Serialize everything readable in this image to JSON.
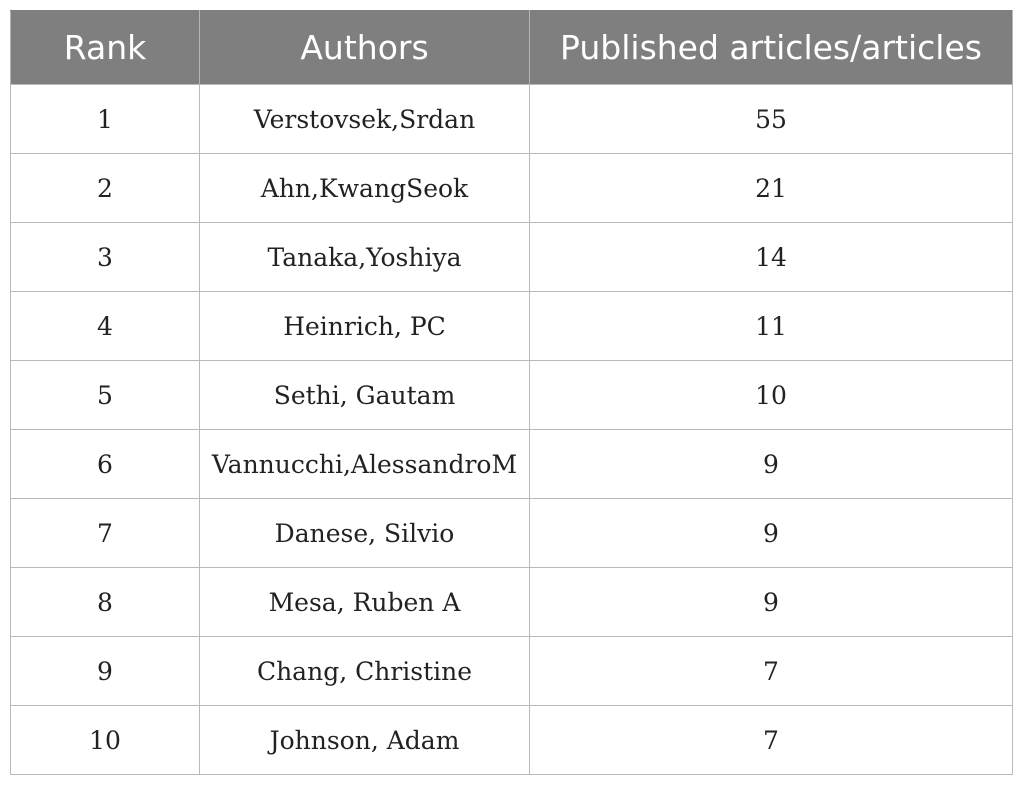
{
  "table": {
    "headers": [
      "Rank",
      "Authors",
      "Published articles/articles"
    ],
    "rows": [
      {
        "rank": "1",
        "author": "Verstovsek,Srdan",
        "count": "55"
      },
      {
        "rank": "2",
        "author": "Ahn,KwangSeok",
        "count": "21"
      },
      {
        "rank": "3",
        "author": "Tanaka,Yoshiya",
        "count": "14"
      },
      {
        "rank": "4",
        "author": "Heinrich, PC",
        "count": "11"
      },
      {
        "rank": "5",
        "author": "Sethi, Gautam",
        "count": "10"
      },
      {
        "rank": "6",
        "author": "Vannucchi,AlessandroM",
        "count": "9"
      },
      {
        "rank": "7",
        "author": "Danese, Silvio",
        "count": "9"
      },
      {
        "rank": "8",
        "author": "Mesa, Ruben A",
        "count": "9"
      },
      {
        "rank": "9",
        "author": "Chang, Christine",
        "count": "7"
      },
      {
        "rank": "10",
        "author": "Johnson, Adam",
        "count": "7"
      }
    ]
  }
}
